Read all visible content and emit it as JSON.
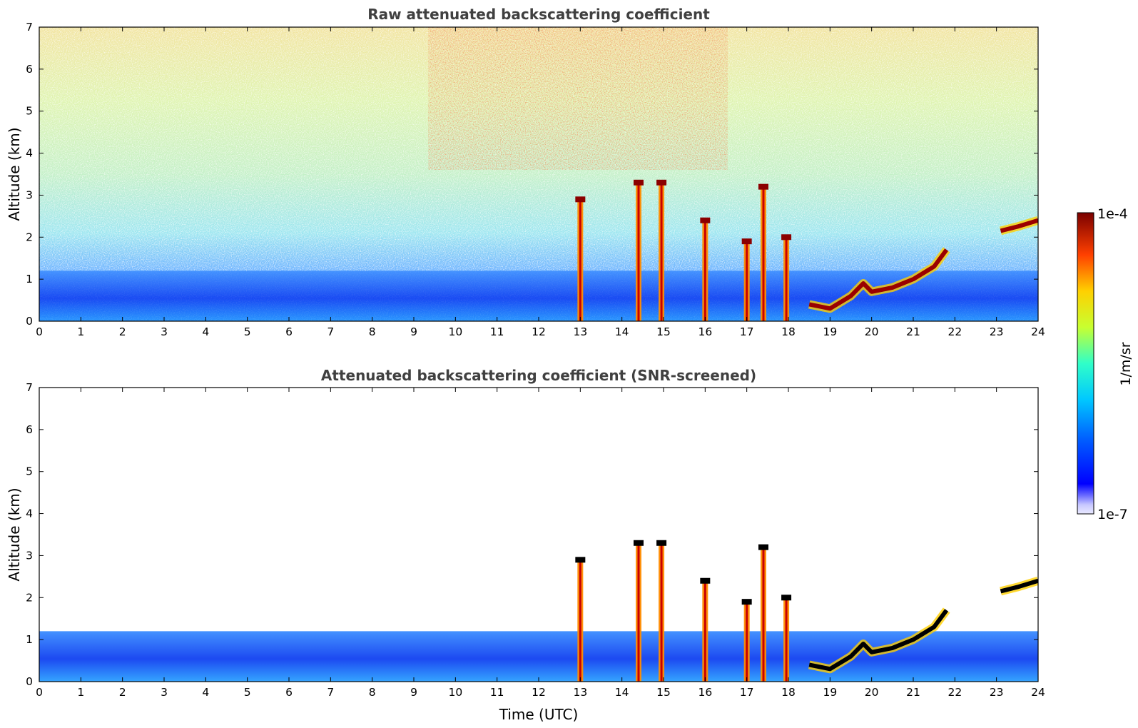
{
  "chart_data": [
    {
      "type": "heatmap",
      "title": "Raw attenuated backscattering coefficient",
      "xlabel": "",
      "ylabel": "Altitude (km)",
      "xlim": [
        0,
        24
      ],
      "ylim": [
        0,
        7
      ],
      "x_ticks": [
        "0",
        "1",
        "2",
        "3",
        "4",
        "5",
        "6",
        "7",
        "8",
        "9",
        "10",
        "11",
        "12",
        "13",
        "14",
        "15",
        "16",
        "17",
        "18",
        "19",
        "20",
        "21",
        "22",
        "23",
        "24"
      ],
      "y_ticks": [
        "0",
        "1",
        "2",
        "3",
        "4",
        "5",
        "6",
        "7"
      ],
      "features": [
        {
          "type": "boundary_layer",
          "x_start": 0,
          "x_end": 24,
          "top_km": 1.2
        },
        {
          "type": "cloud_column",
          "x": 13.0,
          "from_km": 0,
          "to_km": 2.9
        },
        {
          "type": "cloud_column",
          "x": 14.4,
          "from_km": 0,
          "to_km": 3.3
        },
        {
          "type": "cloud_column",
          "x": 14.95,
          "from_km": 0,
          "to_km": 3.3
        },
        {
          "type": "cloud_column",
          "x": 16.0,
          "from_km": 0,
          "to_km": 2.4
        },
        {
          "type": "cloud_column",
          "x": 17.0,
          "from_km": 0,
          "to_km": 1.9
        },
        {
          "type": "cloud_column",
          "x": 17.4,
          "from_km": 0,
          "to_km": 3.2
        },
        {
          "type": "cloud_column",
          "x": 17.95,
          "from_km": 0,
          "to_km": 2.0
        },
        {
          "type": "cloud_layer",
          "x": [
            18.5,
            19.0,
            19.5,
            19.8,
            20.0,
            20.5,
            21.0,
            21.5,
            21.8
          ],
          "y_km": [
            0.4,
            0.3,
            0.6,
            0.9,
            0.7,
            0.8,
            1.0,
            1.3,
            1.7
          ]
        },
        {
          "type": "cloud_layer",
          "x": [
            23.1,
            23.5,
            24.0
          ],
          "y_km": [
            2.15,
            2.25,
            2.4
          ]
        }
      ]
    },
    {
      "type": "heatmap",
      "title": "Attenuated backscattering coefficient (SNR-screened)",
      "xlabel": "Time (UTC)",
      "ylabel": "Altitude (km)",
      "xlim": [
        0,
        24
      ],
      "ylim": [
        0,
        7
      ],
      "x_ticks": [
        "0",
        "1",
        "2",
        "3",
        "4",
        "5",
        "6",
        "7",
        "8",
        "9",
        "10",
        "11",
        "12",
        "13",
        "14",
        "15",
        "16",
        "17",
        "18",
        "19",
        "20",
        "21",
        "22",
        "23",
        "24"
      ],
      "y_ticks": [
        "0",
        "1",
        "2",
        "3",
        "4",
        "5",
        "6",
        "7"
      ]
    }
  ],
  "colorbar": {
    "label": "1/m/sr",
    "max_label": "1e-4",
    "min_label": "1e-7",
    "colormap": "jet",
    "scale": "log",
    "range": [
      1e-07,
      0.0001
    ]
  }
}
